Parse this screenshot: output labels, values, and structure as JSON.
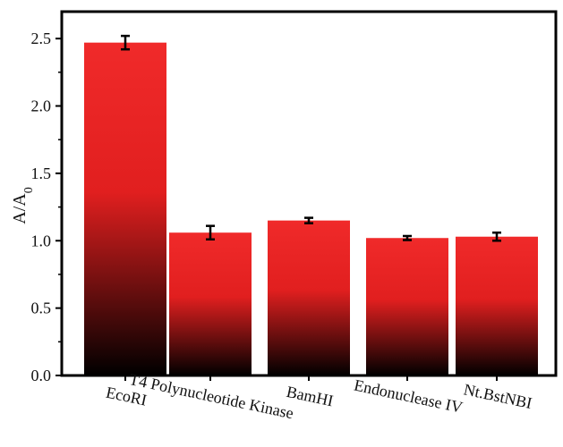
{
  "chart_data": {
    "type": "bar",
    "title": "",
    "xlabel": "",
    "ylabel": "A/A",
    "ylabel_subscript": "0",
    "categories": [
      "EcoRI",
      "T4 Polynucleotide Kinase",
      "BamHI",
      "Endonuclease IV",
      "Nt.BstNBI"
    ],
    "values": [
      2.47,
      1.06,
      1.15,
      1.02,
      1.03
    ],
    "errors": [
      0.05,
      0.05,
      0.02,
      0.015,
      0.03
    ],
    "ylim": [
      0.0,
      2.7
    ],
    "yticks": [
      "0.0",
      "0.5",
      "1.0",
      "1.5",
      "2.0",
      "2.5"
    ],
    "grid": false,
    "bar_gradient": {
      "top": "#f02a2a",
      "middle": "#e11f1f",
      "bottom": "#000000"
    },
    "axis_color": "#000000"
  }
}
